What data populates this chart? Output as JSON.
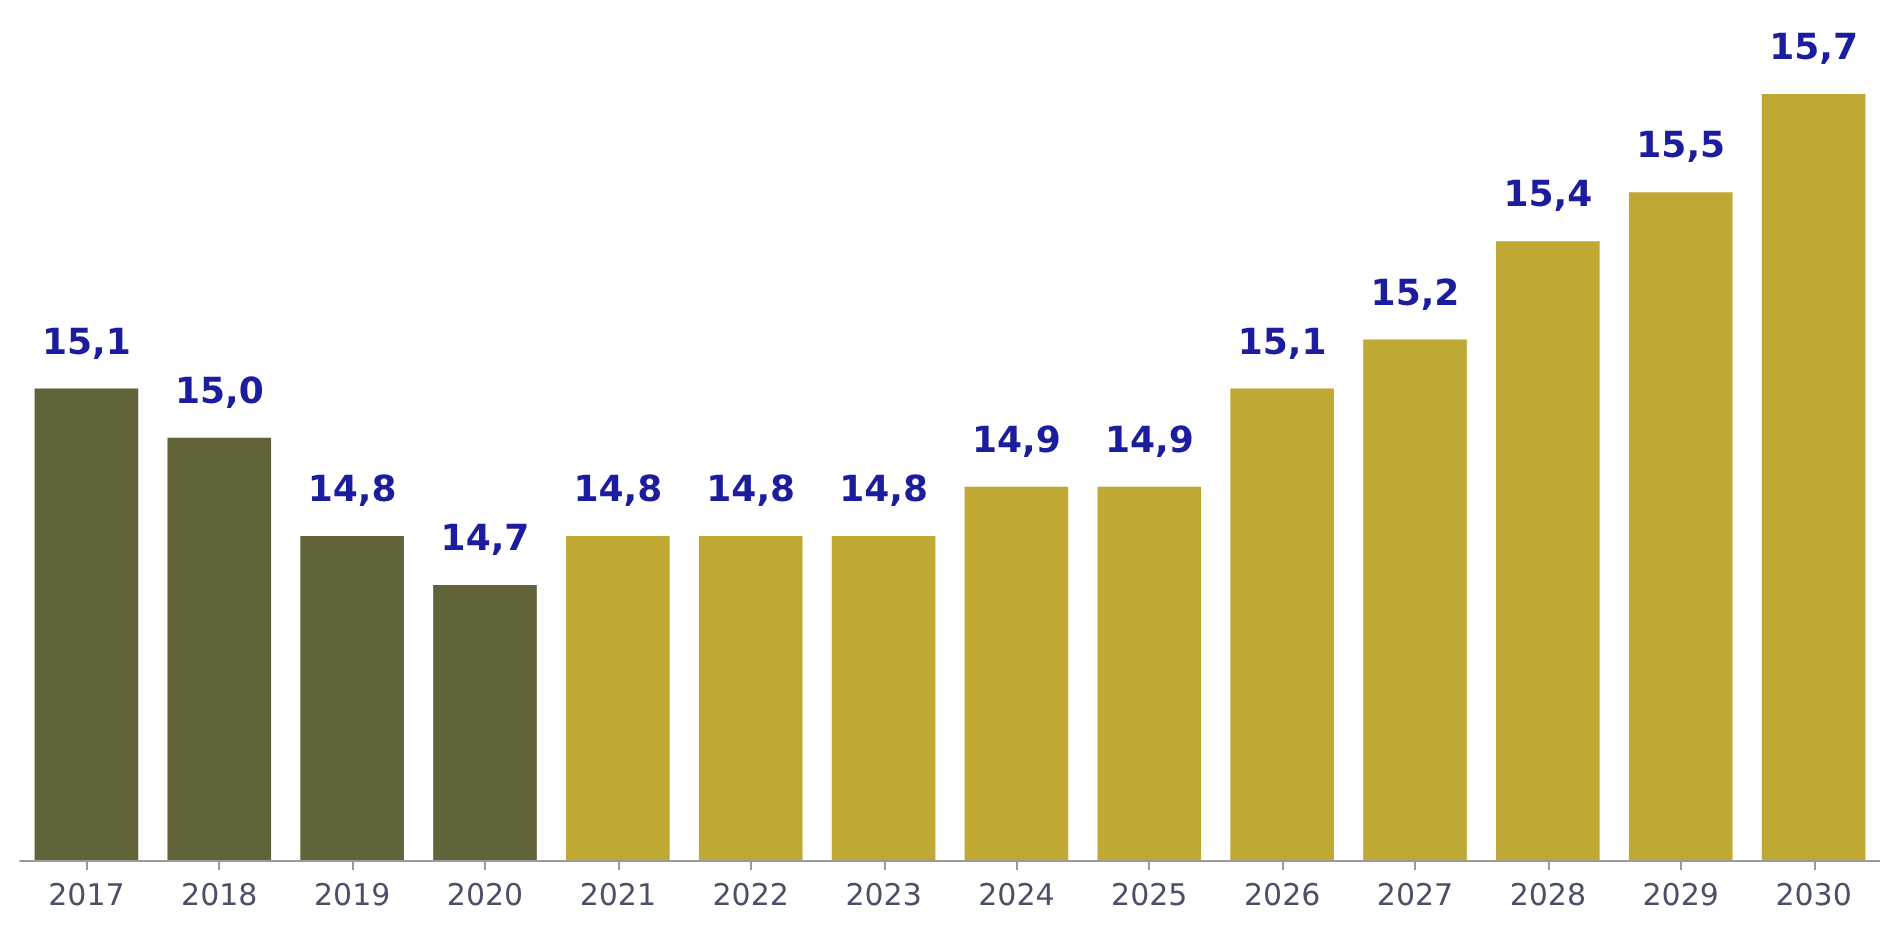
{
  "chart_data": {
    "type": "bar",
    "categories": [
      "2017",
      "2018",
      "2019",
      "2020",
      "2021",
      "2022",
      "2023",
      "2024",
      "2025",
      "2026",
      "2027",
      "2028",
      "2029",
      "2030"
    ],
    "values": [
      15.1,
      15.0,
      14.8,
      14.7,
      14.8,
      14.8,
      14.8,
      14.9,
      14.9,
      15.1,
      15.2,
      15.4,
      15.5,
      15.7
    ],
    "colors": [
      "#636339",
      "#636339",
      "#636339",
      "#636339",
      "#bfa834",
      "#bfa834",
      "#bfa834",
      "#bfa834",
      "#bfa834",
      "#bfa834",
      "#bfa834",
      "#bfa834",
      "#bfa834",
      "#bfa834"
    ],
    "value_labels": [
      "15,1",
      "15,0",
      "14,8",
      "14,7",
      "14,8",
      "14,8",
      "14,8",
      "14,9",
      "14,9",
      "15,1",
      "15,2",
      "15,4",
      "15,5",
      "15,7"
    ],
    "ylim": [
      14.14,
      15.7
    ],
    "tick_labels": "x"
  }
}
